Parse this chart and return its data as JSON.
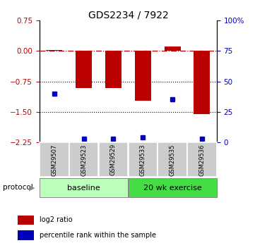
{
  "title": "GDS2234 / 7922",
  "samples": [
    "GSM29507",
    "GSM29523",
    "GSM29529",
    "GSM29533",
    "GSM29535",
    "GSM29536"
  ],
  "log2_ratio": [
    0.02,
    -0.92,
    -0.92,
    -1.22,
    0.12,
    -1.55
  ],
  "percentile_rank": [
    40,
    3,
    3,
    4,
    35,
    3
  ],
  "ylim_left": [
    -2.25,
    0.75
  ],
  "ylim_right": [
    0,
    100
  ],
  "yticks_left": [
    0.75,
    0,
    -0.75,
    -1.5,
    -2.25
  ],
  "yticks_right": [
    100,
    75,
    50,
    25,
    0
  ],
  "bar_color": "#bb0000",
  "square_color": "#0000bb",
  "protocol_groups": [
    {
      "label": "baseline",
      "start": 0,
      "end": 3,
      "color": "#bbffbb"
    },
    {
      "label": "20 wk exercise",
      "start": 3,
      "end": 6,
      "color": "#44dd44"
    }
  ],
  "protocol_label": "protocol",
  "legend_items": [
    {
      "label": "log2 ratio",
      "color": "#bb0000"
    },
    {
      "label": "percentile rank within the sample",
      "color": "#0000bb"
    }
  ],
  "sample_box_color": "#cccccc",
  "bar_width": 0.55
}
